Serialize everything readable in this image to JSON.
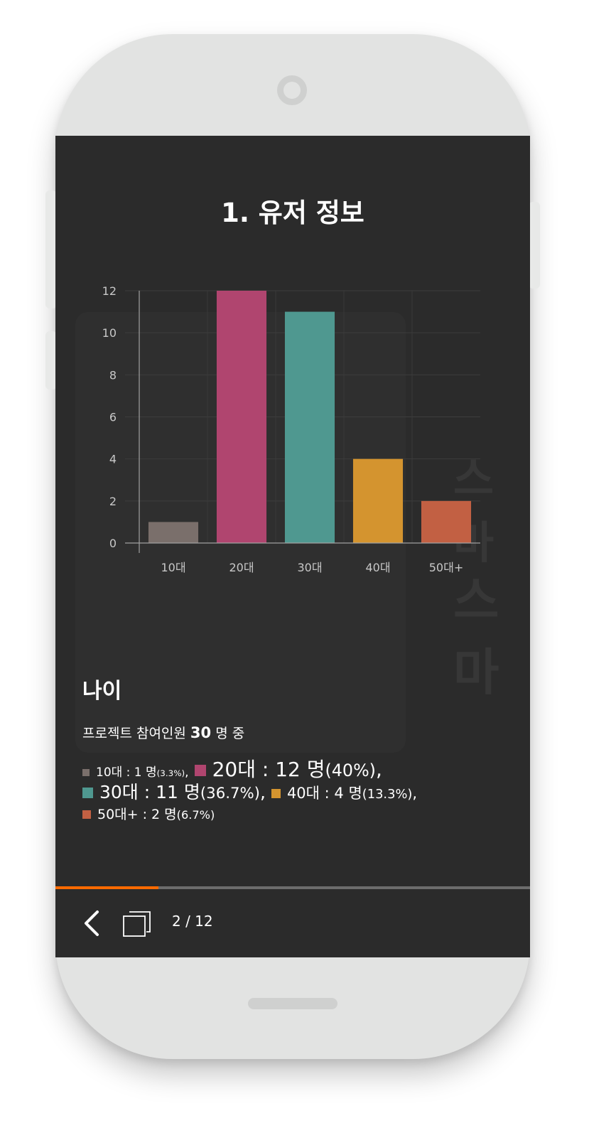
{
  "slide": {
    "title": "1. 유저 정보"
  },
  "chart_data": {
    "type": "bar",
    "categories": [
      "10대",
      "20대",
      "30대",
      "40대",
      "50대+"
    ],
    "values": [
      1,
      12,
      11,
      4,
      2
    ],
    "colors": [
      "#7a6f6b",
      "#b0456f",
      "#4f9890",
      "#d4942f",
      "#c26043"
    ],
    "title": "",
    "xlabel": "",
    "ylabel": "",
    "ylim": [
      0,
      12
    ],
    "yticks": [
      "0",
      "2",
      "4",
      "6",
      "8",
      "10",
      "12"
    ],
    "grid": true,
    "legend": "none"
  },
  "section": {
    "title": "나이",
    "summary_prefix": "프로젝트 참여인원 ",
    "summary_count": "30",
    "summary_suffix": " 명 중"
  },
  "legend_items": [
    {
      "label": "10대 : 1 명 ",
      "pct": "(3.3%)",
      "sep": ",",
      "color": "#7a6f6b"
    },
    {
      "label": "20대 : 12 명 ",
      "pct": "(40%)",
      "sep": ",",
      "color": "#b0456f"
    },
    {
      "label": "30대 : 11 명 ",
      "pct": "(36.7%)",
      "sep": ",",
      "color": "#4f9890"
    },
    {
      "label": "40대 : 4 명 ",
      "pct": "(13.3%)",
      "sep": ",",
      "color": "#d4942f"
    },
    {
      "label": "50대+ : 2 명 ",
      "pct": "(6.7%)",
      "sep": "",
      "color": "#c26043"
    }
  ],
  "navigation": {
    "page_counter": "2 / 12",
    "progress": 0.2167,
    "back_icon": "chevron-left-icon",
    "pages_icon": "stacked-pages-icon"
  },
  "background": {
    "watermark_text": "스마"
  },
  "colors": {
    "accent": "#ff6a00",
    "screen_bg": "#2b2b2b"
  }
}
